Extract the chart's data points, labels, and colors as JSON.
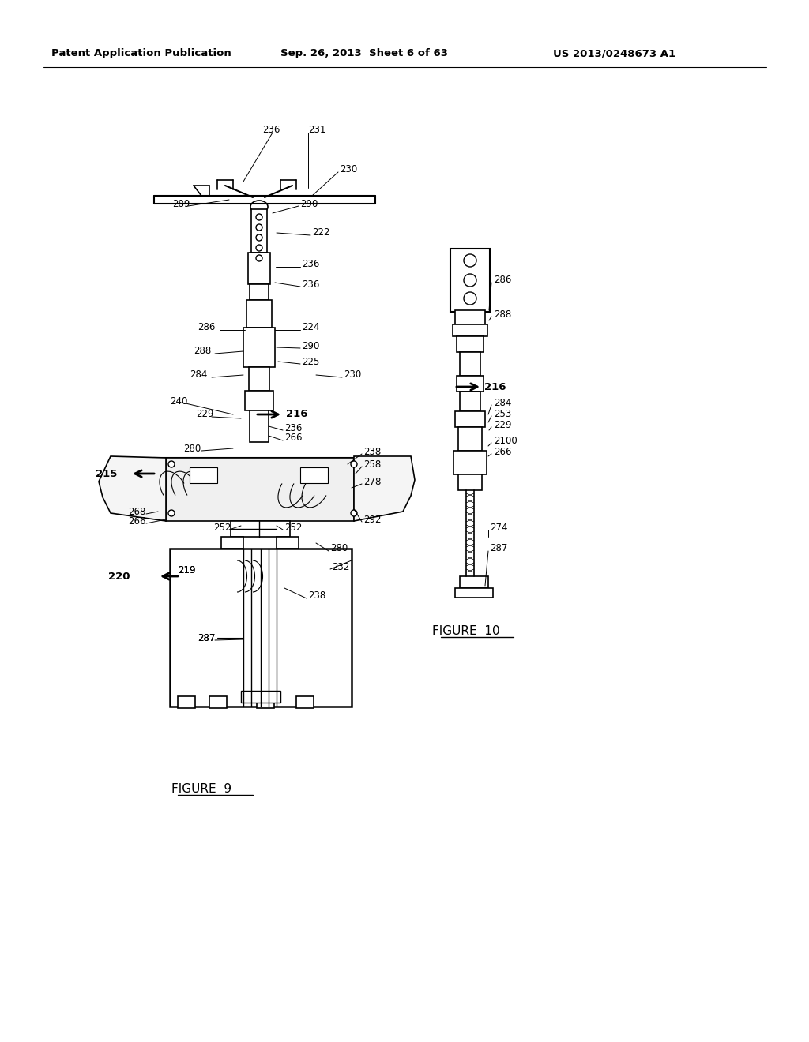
{
  "background_color": "#ffffff",
  "header_left": "Patent Application Publication",
  "header_center": "Sep. 26, 2013  Sheet 6 of 63",
  "header_right": "US 2013/0248673 A1",
  "figure9_caption": "FIGURE  9",
  "figure10_caption": "FIGURE  10",
  "line_color": "#000000",
  "text_color": "#000000",
  "bold_labels": [
    "215",
    "216",
    "220"
  ],
  "labels": [
    "231",
    "236",
    "230",
    "290",
    "289",
    "222",
    "236",
    "236",
    "286",
    "224",
    "288",
    "290",
    "225",
    "284",
    "230",
    "240",
    "229",
    "216",
    "236",
    "266",
    "280",
    "215",
    "238",
    "258",
    "278",
    "268",
    "266",
    "252",
    "252",
    "292",
    "280",
    "219",
    "287",
    "238",
    "232",
    "220",
    "286",
    "288",
    "216",
    "284",
    "253",
    "229",
    "2100",
    "266",
    "274",
    "287"
  ]
}
